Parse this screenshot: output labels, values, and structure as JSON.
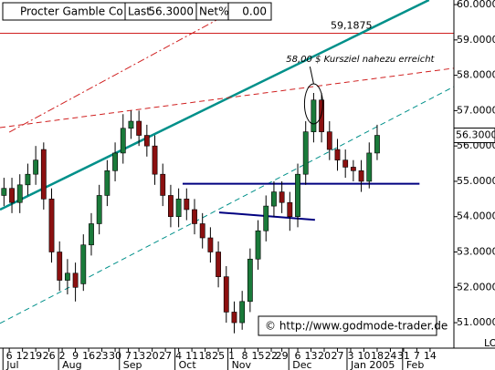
{
  "chart_data": {
    "type": "candlestick",
    "header": {
      "name": "Procter  Gamble Co",
      "last_label": "Last",
      "last": "56.3000",
      "net_label": "Net%",
      "net": "0.00"
    },
    "x": [
      0,
      3,
      6,
      9,
      12,
      15,
      18,
      21,
      24,
      27,
      30,
      33,
      36,
      39,
      42,
      45,
      48,
      51,
      54,
      57,
      60,
      63,
      66,
      69,
      72,
      75,
      78,
      81,
      84,
      87,
      90,
      93,
      96,
      99,
      102,
      105,
      108,
      111,
      114,
      117,
      120,
      123,
      126,
      129,
      132,
      135,
      138,
      141
    ],
    "open": [
      54.6,
      54.8,
      54.4,
      54.9,
      55.2,
      55.9,
      54.5,
      53.0,
      52.2,
      52.4,
      52.1,
      53.2,
      53.8,
      54.6,
      55.3,
      55.8,
      56.5,
      56.7,
      56.3,
      56.0,
      55.2,
      54.6,
      54.0,
      54.5,
      54.2,
      53.8,
      53.4,
      53.0,
      52.3,
      51.3,
      51.0,
      51.6,
      52.8,
      53.6,
      54.3,
      54.7,
      54.4,
      54.0,
      55.2,
      56.4,
      57.3,
      56.4,
      55.9,
      55.6,
      55.4,
      55.3,
      55.0,
      55.8
    ],
    "high": [
      55.1,
      55.1,
      55.2,
      55.5,
      56.0,
      56.1,
      54.8,
      53.3,
      52.8,
      52.7,
      53.5,
      54.1,
      54.9,
      55.6,
      56.1,
      56.9,
      57.0,
      57.0,
      56.6,
      56.3,
      55.5,
      54.9,
      54.8,
      54.8,
      54.5,
      54.1,
      53.7,
      53.3,
      52.6,
      51.6,
      51.9,
      53.1,
      53.9,
      54.6,
      55.0,
      55.0,
      54.7,
      55.5,
      56.7,
      57.5,
      57.5,
      56.7,
      56.2,
      55.9,
      55.6,
      55.6,
      56.1,
      56.6
    ],
    "low": [
      54.3,
      54.1,
      54.1,
      54.6,
      54.9,
      54.2,
      52.7,
      51.9,
      51.8,
      51.6,
      51.9,
      52.9,
      53.5,
      54.3,
      55.0,
      55.5,
      56.2,
      56.0,
      55.7,
      54.9,
      54.3,
      53.7,
      53.7,
      53.9,
      53.5,
      53.1,
      52.7,
      52.0,
      51.0,
      50.7,
      50.8,
      51.3,
      52.5,
      53.3,
      54.0,
      54.1,
      53.6,
      53.7,
      54.9,
      56.1,
      56.1,
      55.6,
      55.3,
      55.1,
      55.0,
      54.7,
      54.8,
      55.6
    ],
    "close": [
      54.8,
      54.4,
      54.9,
      55.2,
      55.6,
      54.5,
      53.0,
      52.2,
      52.4,
      52.0,
      53.2,
      53.8,
      54.6,
      55.3,
      55.8,
      56.5,
      56.7,
      56.3,
      56.0,
      55.2,
      54.6,
      54.0,
      54.5,
      54.2,
      53.8,
      53.4,
      53.0,
      52.3,
      51.3,
      51.0,
      51.6,
      52.8,
      53.6,
      54.3,
      54.7,
      54.4,
      54.0,
      55.2,
      56.4,
      57.3,
      56.4,
      55.9,
      55.6,
      55.4,
      55.3,
      55.0,
      55.8,
      56.3
    ],
    "up_color": "#1a7a3a",
    "down_color": "#8b1010",
    "xlim": [
      -1.5,
      170
    ],
    "ylim": [
      50.28,
      60.13
    ],
    "yticks": [
      {
        "value": 51,
        "label": "51.0000"
      },
      {
        "value": 52,
        "label": "52.0000"
      },
      {
        "value": 53,
        "label": "53.0000"
      },
      {
        "value": 54,
        "label": "54.0000"
      },
      {
        "value": 55,
        "label": "55.0000"
      },
      {
        "value": 56,
        "label": "56.0000"
      },
      {
        "value": 57,
        "label": "57.0000"
      },
      {
        "value": 58,
        "label": "58.0000"
      },
      {
        "value": 59,
        "label": "59.0000"
      },
      {
        "value": 60,
        "label": "60.0000"
      }
    ],
    "y_axis_note": "LO",
    "last_price": {
      "value": 56.3,
      "label": "56.3000"
    },
    "xticks": [
      {
        "value": 2,
        "label": "6"
      },
      {
        "value": 7,
        "label": "12"
      },
      {
        "value": 12,
        "label": "19"
      },
      {
        "value": 17,
        "label": "26"
      },
      {
        "value": 22,
        "label": "2"
      },
      {
        "value": 27,
        "label": "9"
      },
      {
        "value": 32,
        "label": "16"
      },
      {
        "value": 37,
        "label": "23"
      },
      {
        "value": 42,
        "label": "30"
      },
      {
        "value": 47,
        "label": "7"
      },
      {
        "value": 51,
        "label": "13"
      },
      {
        "value": 56,
        "label": "20"
      },
      {
        "value": 61,
        "label": "27"
      },
      {
        "value": 66,
        "label": "4"
      },
      {
        "value": 71,
        "label": "11"
      },
      {
        "value": 76,
        "label": "18"
      },
      {
        "value": 81,
        "label": "25"
      },
      {
        "value": 86,
        "label": "1"
      },
      {
        "value": 91,
        "label": "8"
      },
      {
        "value": 96,
        "label": "15"
      },
      {
        "value": 101,
        "label": "22"
      },
      {
        "value": 105,
        "label": "29"
      },
      {
        "value": 111,
        "label": "6"
      },
      {
        "value": 116,
        "label": "13"
      },
      {
        "value": 121,
        "label": "20"
      },
      {
        "value": 126,
        "label": "27"
      },
      {
        "value": 131,
        "label": "3"
      },
      {
        "value": 136,
        "label": "10"
      },
      {
        "value": 141,
        "label": "18"
      },
      {
        "value": 146,
        "label": "24"
      },
      {
        "value": 151,
        "label": "31"
      },
      {
        "value": 156,
        "label": "7"
      },
      {
        "value": 161,
        "label": "14"
      }
    ],
    "xmonths": [
      {
        "value": 1,
        "label": "Jul"
      },
      {
        "value": 22,
        "label": "Aug"
      },
      {
        "value": 45,
        "label": "Sep"
      },
      {
        "value": 66,
        "label": "Oct"
      },
      {
        "value": 86,
        "label": "Nov"
      },
      {
        "value": 109,
        "label": "Dec"
      },
      {
        "value": 131,
        "label": "Jan 2005"
      },
      {
        "value": 152,
        "label": "Feb"
      }
    ],
    "trendlines": [
      {
        "color": "#00908a",
        "style": "solid",
        "width": 2.5,
        "x": [
          -1.5,
          160.6
        ],
        "y": [
          54.2,
          60.13
        ]
      },
      {
        "color": "#00908a",
        "style": "dashed",
        "width": 1,
        "x": [
          -1.5,
          170
        ],
        "y": [
          50.98,
          57.68
        ]
      },
      {
        "color": "#d02020",
        "style": "dashed",
        "width": 1,
        "x": [
          -1.5,
          170
        ],
        "y": [
          56.52,
          58.2
        ]
      },
      {
        "color": "#d02020",
        "style": "dashdot",
        "width": 1,
        "x": [
          2,
          84.7
        ],
        "y": [
          56.39,
          59.74
        ]
      },
      {
        "color": "#000080",
        "style": "solid",
        "width": 2,
        "x": [
          67.5,
          157
        ],
        "y": [
          54.93,
          54.93
        ]
      },
      {
        "color": "#000080",
        "style": "solid",
        "width": 2,
        "x": [
          81.3,
          117.5
        ],
        "y": [
          54.12,
          53.91
        ]
      }
    ],
    "hline": {
      "value": 59.1875,
      "label": "59,1875",
      "color": "#d02020"
    },
    "annotation": {
      "text": "58,00 $ Kursziel nahezu erreicht",
      "x": 106.6,
      "y": 58.45
    },
    "copyright": "© http://www.godmode-trader.de"
  }
}
